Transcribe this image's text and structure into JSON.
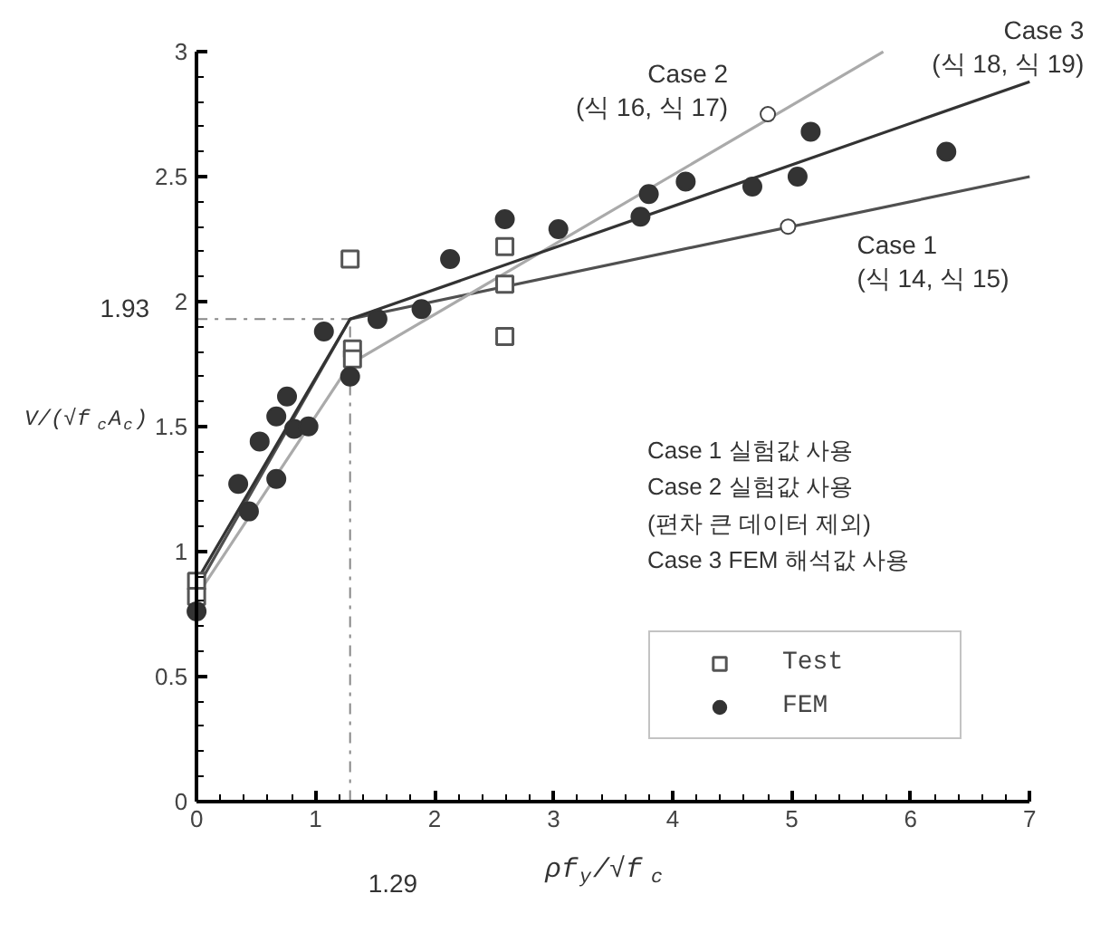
{
  "chart_data": {
    "type": "scatter",
    "xlabel": "ρf$_{y}$/√f$_{c}$",
    "ylabel": "V/(√f$_{c}$A$_{c}$)",
    "xlim": [
      0,
      7
    ],
    "ylim": [
      0,
      3
    ],
    "xticks": [
      0,
      1,
      2,
      3,
      4,
      5,
      6,
      7
    ],
    "yticks": [
      0,
      0.5,
      1,
      1.5,
      2,
      2.5,
      3
    ],
    "grid": false,
    "legend": "bottom right",
    "series": [
      {
        "name": "Test",
        "marker": "square",
        "color": "#555555",
        "x": [
          0,
          0,
          1.29,
          1.31,
          1.31,
          2.59,
          2.59,
          2.59
        ],
        "values": [
          0.88,
          0.82,
          2.17,
          1.81,
          1.77,
          2.22,
          2.07,
          1.86
        ]
      },
      {
        "name": "FEM",
        "marker": "circle",
        "color": "#333333",
        "x": [
          0,
          0.35,
          0.44,
          0.53,
          0.67,
          0.76,
          0.67,
          0.82,
          0.94,
          1.07,
          1.29,
          1.52,
          1.89,
          2.13,
          2.59,
          3.04,
          3.73,
          3.8,
          4.11,
          4.67,
          5.05,
          5.16,
          6.3
        ],
        "values": [
          0.76,
          1.27,
          1.16,
          1.44,
          1.54,
          1.62,
          1.29,
          1.49,
          1.5,
          1.88,
          1.7,
          1.93,
          1.97,
          2.17,
          2.33,
          2.29,
          2.34,
          2.43,
          2.48,
          2.46,
          2.5,
          2.68,
          2.6
        ]
      },
      {
        "type": "line",
        "marker": "none",
        "line_style": "solid",
        "color": "#505050",
        "x": [
          0,
          1.29,
          7
        ],
        "values": [
          0.85,
          1.93,
          2.5
        ]
      },
      {
        "type": "line",
        "marker": "none",
        "line_style": "solid",
        "color": "#aaaaaa",
        "x": [
          0,
          1.29,
          5.77
        ],
        "values": [
          0.82,
          1.75,
          3.0
        ]
      },
      {
        "type": "line",
        "marker": "none",
        "line_style": "solid",
        "color": "#333333",
        "x": [
          0,
          1.29,
          7
        ],
        "values": [
          0.88,
          1.93,
          2.88
        ]
      }
    ],
    "ref_lines": [
      {
        "axis": "y",
        "value": 1.93,
        "label": "1.93",
        "color": "#888888",
        "line_style": "dashdot"
      },
      {
        "axis": "x",
        "value": 1.29,
        "label": "1.29",
        "color": "#888888",
        "line_style": "dashdot"
      }
    ],
    "annotations": [
      {
        "text": "Case 1\n(식 14, 식 15)",
        "x": 4.97,
        "y": 2.3
      },
      {
        "text": "Case 2\n(식 16, 식 17)",
        "x": 4.8,
        "y": 2.75
      },
      {
        "text": "Case 3\n(식 18, 식 19)",
        "x": 7,
        "y": 2.88
      },
      "Case 1 실험값 사용\nCase 2 실험값 사용\n            (편차 큰 데이터 제외)\nCase 3 FEM 해석값 사용"
    ]
  }
}
